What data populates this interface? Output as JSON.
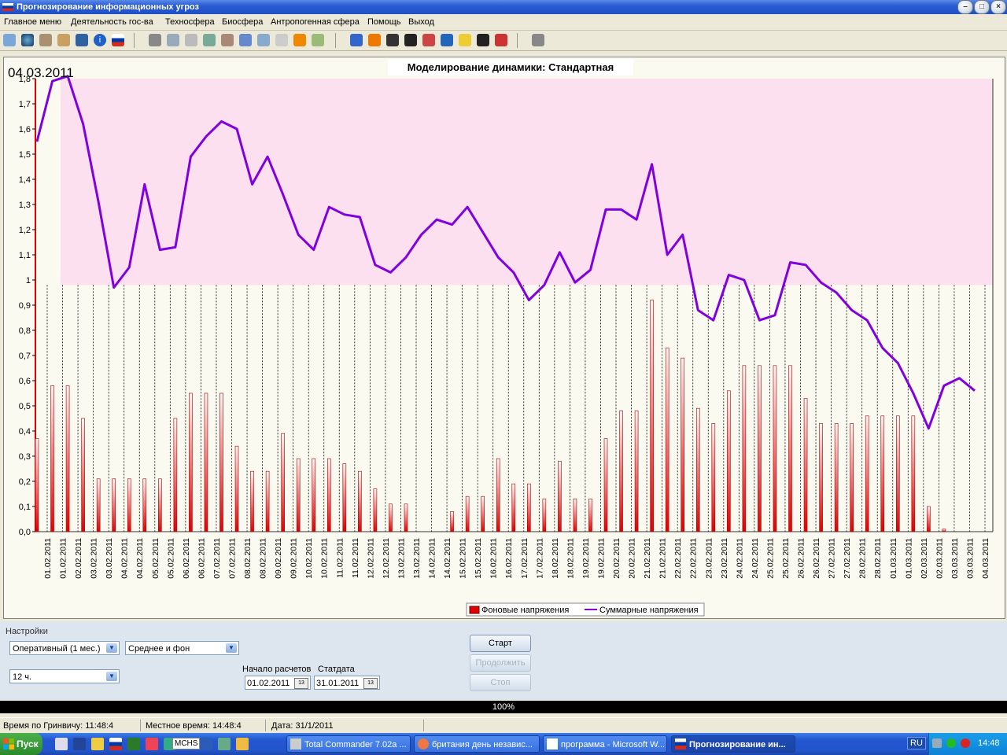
{
  "window": {
    "title": "Прогнозирование информационных угроз"
  },
  "menu": [
    "Главное меню",
    "Деятельность гос-ва",
    "Техносфера",
    "Биосфера",
    "Антропогенная сфера",
    "Помощь",
    "Выход"
  ],
  "chart_data": {
    "type": "bar+line",
    "title": "Моделирование динамики: Стандартная",
    "date_label": "04.03.2011",
    "ylim": [
      0,
      1.8
    ],
    "y_ticks": [
      "0,0",
      "0,1",
      "0,2",
      "0,3",
      "0,4",
      "0,5",
      "0,6",
      "0,7",
      "0,8",
      "0,9",
      "1",
      "1,1",
      "1,2",
      "1,3",
      "1,4",
      "1,5",
      "1,6",
      "1,7",
      "1,8"
    ],
    "threshold": 0.98,
    "grid": "vertical dashed",
    "legend_position": "bottom-right",
    "categories": [
      "01.02.2011",
      "01.02.2011",
      "02.02.2011",
      "03.02.2011",
      "03.02.2011",
      "04.02.2011",
      "04.02.2011",
      "05.02.2011",
      "05.02.2011",
      "06.02.2011",
      "06.02.2011",
      "07.02.2011",
      "07.02.2011",
      "08.02.2011",
      "08.02.2011",
      "09.02.2011",
      "09.02.2011",
      "10.02.2011",
      "10.02.2011",
      "11.02.2011",
      "11.02.2011",
      "12.02.2011",
      "12.02.2011",
      "13.02.2011",
      "13.02.2011",
      "14.02.2011",
      "14.02.2011",
      "15.02.2011",
      "15.02.2011",
      "16.02.2011",
      "16.02.2011",
      "17.02.2011",
      "17.02.2011",
      "18.02.2011",
      "18.02.2011",
      "19.02.2011",
      "19.02.2011",
      "20.02.2011",
      "20.02.2011",
      "21.02.2011",
      "21.02.2011",
      "22.02.2011",
      "22.02.2011",
      "23.02.2011",
      "23.02.2011",
      "24.02.2011",
      "24.02.2011",
      "25.02.2011",
      "25.02.2011",
      "26.02.2011",
      "26.02.2011",
      "27.02.2011",
      "27.02.2011",
      "28.02.2011",
      "28.02.2011",
      "01.03.2011",
      "01.03.2011",
      "02.03.2011",
      "02.03.2011",
      "03.03.2011",
      "03.03.2011",
      "04.03.2011"
    ],
    "series": [
      {
        "name": "Фоновые напряжения",
        "color": "#e00000",
        "values": [
          0.37,
          0.58,
          0.58,
          0.45,
          0.21,
          0.21,
          0.21,
          0.21,
          0.21,
          0.45,
          0.55,
          0.55,
          0.55,
          0.34,
          0.24,
          0.24,
          0.39,
          0.29,
          0.29,
          0.29,
          0.27,
          0.24,
          0.17,
          0.11,
          0.11,
          0,
          0,
          0.08,
          0.14,
          0.14,
          0.29,
          0.19,
          0.19,
          0.13,
          0.28,
          0.13,
          0.13,
          0.37,
          0.48,
          0.48,
          0.92,
          0.73,
          0.69,
          0.49,
          0.43,
          0.56,
          0.66,
          0.66,
          0.66,
          0.66,
          0.53,
          0.43,
          0.43,
          0.43,
          0.46,
          0.46,
          0.46,
          0.46,
          0.1,
          0.01,
          0,
          0
        ]
      },
      {
        "name": "Суммарные напряжения",
        "color": "#8000e0",
        "values": [
          1.55,
          1.79,
          1.81,
          1.62,
          1.31,
          0.97,
          1.05,
          1.38,
          1.12,
          1.13,
          1.49,
          1.57,
          1.63,
          1.6,
          1.38,
          1.49,
          1.34,
          1.18,
          1.12,
          1.29,
          1.26,
          1.25,
          1.06,
          1.03,
          1.09,
          1.18,
          1.24,
          1.22,
          1.29,
          1.19,
          1.09,
          1.03,
          0.92,
          0.98,
          1.11,
          0.99,
          1.04,
          1.28,
          1.28,
          1.24,
          1.46,
          1.1,
          1.18,
          0.88,
          0.84,
          1.02,
          1.0,
          0.84,
          0.86,
          1.07,
          1.06,
          0.99,
          0.95,
          0.88,
          0.84,
          0.73,
          0.67,
          0.55,
          0.41,
          0.58,
          0.61,
          0.56
        ]
      }
    ]
  },
  "settings": {
    "group_label": "Настройки",
    "mode": "Оперативный (1 мес.)",
    "aggregation": "Среднее и фон",
    "interval": "12 ч.",
    "start_label": "Начало расчетов",
    "start_value": "01.02.2011",
    "stat_label": "Статдата",
    "stat_value": "31.01.2011",
    "cal_icon_text": "13",
    "btn_start": "Старт",
    "btn_continue": "Продолжить",
    "btn_stop": "Стоп"
  },
  "progress": {
    "text": "100%",
    "value": 100
  },
  "status": {
    "gmt": "Время по Гринвичу: 11:48:4",
    "local": "Местное время: 14:48:4",
    "date": "Дата: 31/1/2011"
  },
  "taskbar": {
    "start": "Пуск",
    "mchs": "MCHS",
    "tasks": [
      "Total Commander 7.02a ...",
      "британия день независ...",
      "программа - Microsoft W...",
      "Прогнозирование  ин..."
    ],
    "lang": "RU",
    "clock": "14:48"
  }
}
